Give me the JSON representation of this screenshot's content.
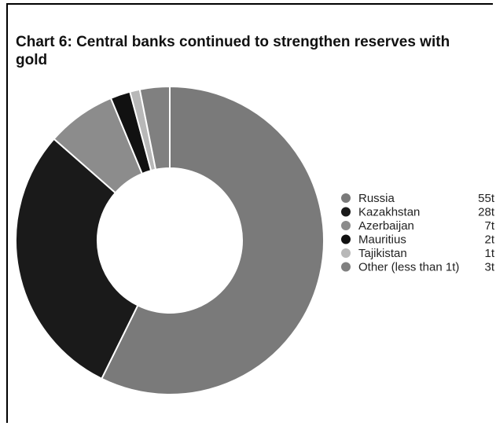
{
  "chart_data": {
    "type": "pie",
    "style": "donut",
    "title": "Chart 6: Central banks continued to strengthen reserves with gold",
    "legend_position": "right",
    "unit": "t",
    "slices": [
      {
        "label": "Russia",
        "value": 55,
        "value_label": "55t",
        "color": "#7a7a7a"
      },
      {
        "label": "Kazakhstan",
        "value": 28,
        "value_label": "28t",
        "color": "#1a1a1a"
      },
      {
        "label": "Azerbaijan",
        "value": 7,
        "value_label": "7t",
        "color": "#8c8c8c"
      },
      {
        "label": "Mauritius",
        "value": 2,
        "value_label": "2t",
        "color": "#111111"
      },
      {
        "label": "Tajikistan",
        "value": 1,
        "value_label": "1t",
        "color": "#b8b8b8"
      },
      {
        "label": "Other (less than 1t)",
        "value": 3,
        "value_label": "3t",
        "color": "#808080"
      }
    ]
  }
}
